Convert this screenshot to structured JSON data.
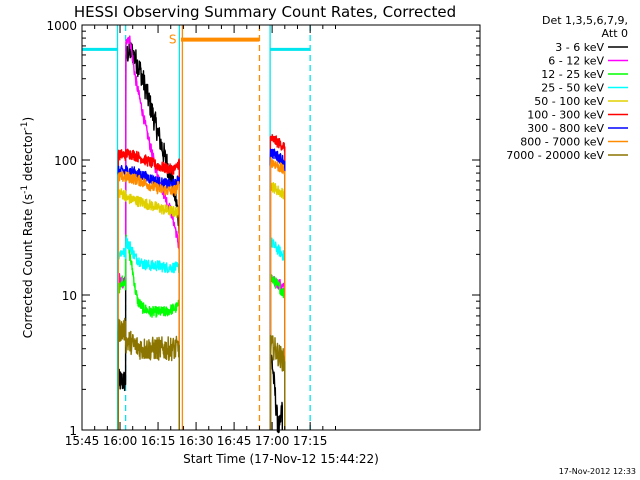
{
  "chart_data": {
    "type": "line",
    "title": "HESSI Observing Summary Count Rates, Corrected",
    "xlabel": "Start Time (17-Nov-12 15:44:22)",
    "ylabel_pre": "Corrected Count Rate (s",
    "ylabel_sup1": "-1",
    "ylabel_mid": " detector",
    "ylabel_sup2": "-1",
    "ylabel_post": ")",
    "yscale": "log",
    "xlim_minutes": [
      1,
      158
    ],
    "ylim": [
      1,
      1000
    ],
    "x_ticks": [
      {
        "t": 1,
        "label": "15:45"
      },
      {
        "t": 16,
        "label": "16:00"
      },
      {
        "t": 31,
        "label": "16:15"
      },
      {
        "t": 46,
        "label": "16:30"
      },
      {
        "t": 61,
        "label": "16:45"
      },
      {
        "t": 76,
        "label": "17:00"
      },
      {
        "t": 91,
        "label": "17:15"
      }
    ],
    "y_ticks": [
      {
        "v": 1,
        "label": "1"
      },
      {
        "v": 10,
        "label": "10"
      },
      {
        "v": 100,
        "label": "100"
      },
      {
        "v": 1000,
        "label": "1000"
      }
    ],
    "legend_header_1": "Det 1,3,5,6,7,9,",
    "legend_header_2": "Att 0",
    "legend_position": "right",
    "timestamp": "17-Nov-2012 12:33",
    "saa_marker_label": "S",
    "night_bars": [
      {
        "from": 1,
        "to": 15,
        "value": 660,
        "color": "#00e5ee"
      },
      {
        "from": 75,
        "to": 91,
        "value": 660,
        "color": "#00e5ee"
      }
    ],
    "saa_bar": {
      "from": 40,
      "to": 71,
      "value": 780,
      "color": "#ff8c00"
    },
    "vertical_lines": [
      {
        "t": 15.0,
        "color": "#00e5ee",
        "style": "solid"
      },
      {
        "t": 18.2,
        "color": "#00e5ee",
        "style": "dashed"
      },
      {
        "t": 39.4,
        "color": "#00e5ee",
        "style": "solid"
      },
      {
        "t": 40.6,
        "color": "#ff8c00",
        "style": "solid"
      },
      {
        "t": 71.0,
        "color": "#ff8c00",
        "style": "dashed"
      },
      {
        "t": 75.2,
        "color": "#00e5ee",
        "style": "solid"
      },
      {
        "t": 91.0,
        "color": "#00e5ee",
        "style": "dashed"
      }
    ],
    "series": [
      {
        "name": "3 - 6 keV",
        "color": "#000000",
        "segments": [
          [
            [
              15.3,
              2.3
            ],
            [
              18.2,
              2.3
            ],
            [
              18.3,
              560
            ],
            [
              19,
              620
            ],
            [
              20,
              640
            ],
            [
              21,
              620
            ],
            [
              22,
              560
            ],
            [
              24,
              460
            ],
            [
              26,
              340
            ],
            [
              28,
              250
            ],
            [
              30,
              185
            ],
            [
              32,
              135
            ],
            [
              34,
              100
            ],
            [
              36,
              78
            ],
            [
              37,
              62
            ],
            [
              38,
              52
            ],
            [
              39,
              38
            ],
            [
              39.4,
              33
            ]
          ],
          [
            [
              75.3,
              3.5
            ],
            [
              76,
              3.2
            ],
            [
              77,
              2.0
            ],
            [
              78,
              1.2
            ],
            [
              79,
              1.0
            ],
            [
              80,
              1.5
            ]
          ]
        ]
      },
      {
        "name": "6 - 12 keV",
        "color": "#ff00ff",
        "segments": [
          [
            [
              15.3,
              14
            ],
            [
              16,
              13
            ],
            [
              17,
              12
            ],
            [
              18.2,
              13
            ],
            [
              18.3,
              700
            ],
            [
              19,
              830
            ],
            [
              20,
              760
            ],
            [
              21,
              560
            ],
            [
              22,
              410
            ],
            [
              24,
              270
            ],
            [
              26,
              180
            ],
            [
              28,
              125
            ],
            [
              30,
              88
            ],
            [
              32,
              66
            ],
            [
              34,
              52
            ],
            [
              36,
              42
            ],
            [
              37,
              36
            ],
            [
              38,
              30
            ],
            [
              39,
              24
            ],
            [
              39.4,
              22
            ]
          ],
          [
            [
              75.3,
              13
            ],
            [
              77,
              12.5
            ],
            [
              79,
              12
            ],
            [
              81,
              11
            ]
          ]
        ]
      },
      {
        "name": "12 - 25 keV",
        "color": "#00ff00",
        "segments": [
          [
            [
              15.3,
              12
            ],
            [
              16,
              11
            ],
            [
              17,
              13
            ],
            [
              18.2,
              12
            ],
            [
              18.3,
              28
            ],
            [
              19,
              24
            ],
            [
              20,
              19
            ],
            [
              21,
              15
            ],
            [
              22,
              11
            ],
            [
              23,
              9
            ],
            [
              25,
              8
            ],
            [
              28,
              7.5
            ],
            [
              31,
              7.5
            ],
            [
              34,
              7.5
            ],
            [
              36,
              7.8
            ],
            [
              38,
              8
            ],
            [
              39.4,
              8.5
            ]
          ],
          [
            [
              75.3,
              14
            ],
            [
              76,
              13
            ],
            [
              78,
              12
            ],
            [
              81,
              10
            ]
          ]
        ]
      },
      {
        "name": "25 - 50 keV",
        "color": "#00ffff",
        "segments": [
          [
            [
              15.3,
              20
            ],
            [
              17,
              21
            ],
            [
              18.2,
              20
            ],
            [
              18.3,
              25
            ],
            [
              20,
              23
            ],
            [
              22,
              19
            ],
            [
              25,
              17
            ],
            [
              28,
              16.5
            ],
            [
              31,
              16.5
            ],
            [
              34,
              16
            ],
            [
              36,
              16
            ],
            [
              38,
              16
            ],
            [
              39.4,
              16
            ]
          ],
          [
            [
              75.3,
              25
            ],
            [
              77,
              23
            ],
            [
              79,
              21
            ],
            [
              81,
              19
            ]
          ]
        ]
      },
      {
        "name": "50 - 100 keV",
        "color": "#e0d000",
        "segments": [
          [
            [
              15.3,
              58
            ],
            [
              17,
              56
            ],
            [
              18.2,
              55
            ],
            [
              18.3,
              52
            ],
            [
              21,
              51
            ],
            [
              24,
              49
            ],
            [
              27,
              47
            ],
            [
              30,
              45
            ],
            [
              33,
              43
            ],
            [
              36,
              42
            ],
            [
              38,
              41
            ],
            [
              39.4,
              41
            ]
          ],
          [
            [
              75.3,
              65
            ],
            [
              77,
              62
            ],
            [
              79,
              58
            ],
            [
              81,
              56
            ]
          ]
        ]
      },
      {
        "name": "100 - 300 keV",
        "color": "#ff0000",
        "segments": [
          [
            [
              15.3,
              108
            ],
            [
              17,
              110
            ],
            [
              18.2,
              108
            ],
            [
              18.3,
              112
            ],
            [
              21,
              110
            ],
            [
              24,
              104
            ],
            [
              27,
              98
            ],
            [
              30,
              92
            ],
            [
              33,
              88
            ],
            [
              36,
              85
            ],
            [
              38,
              86
            ],
            [
              39.4,
              98
            ]
          ],
          [
            [
              75.3,
              145
            ],
            [
              77,
              140
            ],
            [
              79,
              132
            ],
            [
              81,
              125
            ]
          ]
        ]
      },
      {
        "name": "300 - 800 keV",
        "color": "#0000ff",
        "segments": [
          [
            [
              15.3,
              82
            ],
            [
              17,
              83
            ],
            [
              18.2,
              82
            ],
            [
              18.3,
              84
            ],
            [
              21,
              82
            ],
            [
              24,
              78
            ],
            [
              27,
              74
            ],
            [
              30,
              70
            ],
            [
              33,
              67
            ],
            [
              36,
              66
            ],
            [
              38,
              66
            ],
            [
              39.4,
              74
            ]
          ],
          [
            [
              75.3,
              115
            ],
            [
              77,
              110
            ],
            [
              79,
              104
            ],
            [
              81,
              98
            ]
          ]
        ]
      },
      {
        "name": "800 - 7000 keV",
        "color": "#ff8c00",
        "segments": [
          [
            [
              15.3,
              74
            ],
            [
              17,
              75
            ],
            [
              18.2,
              74
            ],
            [
              18.3,
              75
            ],
            [
              21,
              73
            ],
            [
              24,
              70
            ],
            [
              27,
              66
            ],
            [
              30,
              62
            ],
            [
              33,
              60
            ],
            [
              36,
              59
            ],
            [
              38,
              60
            ],
            [
              39.4,
              66
            ]
          ],
          [
            [
              75.3,
              98
            ],
            [
              77,
              94
            ],
            [
              79,
              88
            ],
            [
              81,
              82
            ]
          ]
        ]
      },
      {
        "name": "7000 - 20000 keV",
        "color": "#8b7500",
        "segments": [
          [
            [
              15.3,
              5.5
            ],
            [
              17,
              5.5
            ],
            [
              18.2,
              5.5
            ],
            [
              18.3,
              4.5
            ],
            [
              20,
              4.5
            ],
            [
              22,
              4.2
            ],
            [
              25,
              4.0
            ],
            [
              28,
              4.0
            ],
            [
              31,
              4.0
            ],
            [
              34,
              4.0
            ],
            [
              36,
              4.0
            ],
            [
              38,
              4.0
            ],
            [
              39.4,
              4.2
            ]
          ],
          [
            [
              75.3,
              4.2
            ],
            [
              77,
              4.0
            ],
            [
              79,
              3.5
            ],
            [
              81,
              3.2
            ]
          ]
        ]
      }
    ]
  }
}
